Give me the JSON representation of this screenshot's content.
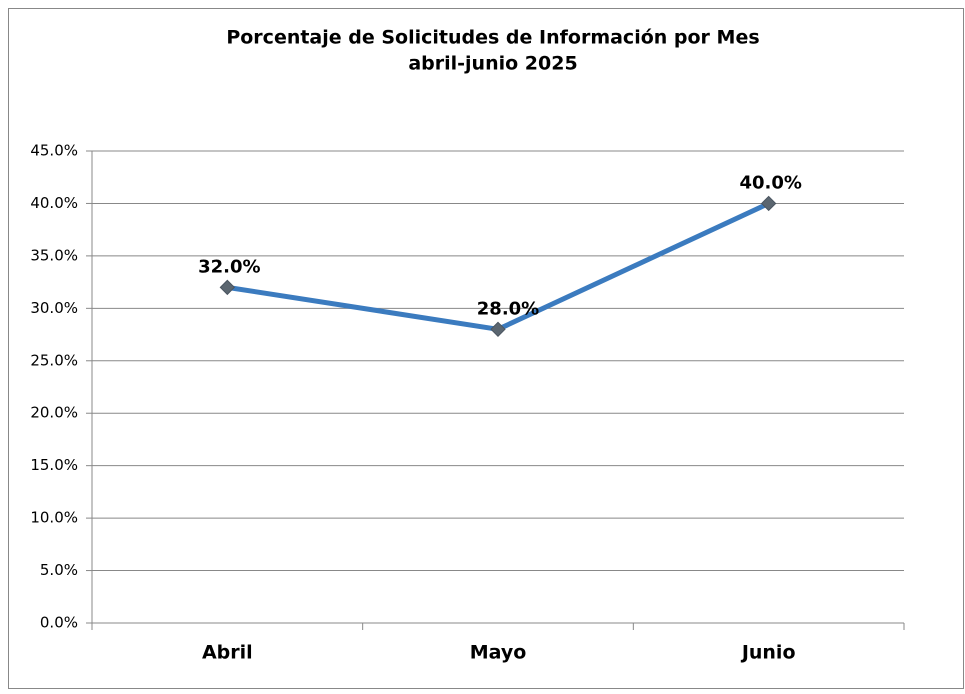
{
  "chart_data": {
    "type": "line",
    "title": "Porcentaje de Solicitudes de Información por Mes",
    "subtitle": "abril-junio 2025",
    "categories": [
      "Abril",
      "Mayo",
      "Junio"
    ],
    "series": [
      {
        "name": "Porcentaje",
        "color": "#3b7bbf",
        "marker_color": "#5b6670",
        "values": [
          32.0,
          28.0,
          40.0
        ],
        "value_labels": [
          "32.0%",
          "28.0%",
          "40.0%"
        ]
      }
    ],
    "ylim": [
      0,
      45
    ],
    "yticks": [
      {
        "value": 0,
        "label": "0.0%"
      },
      {
        "value": 5,
        "label": "5.0%"
      },
      {
        "value": 10,
        "label": "10.0%"
      },
      {
        "value": 15,
        "label": "15.0%"
      },
      {
        "value": 20,
        "label": "20.0%"
      },
      {
        "value": 25,
        "label": "25.0%"
      },
      {
        "value": 30,
        "label": "30.0%"
      },
      {
        "value": 35,
        "label": "35.0%"
      },
      {
        "value": 40,
        "label": "40.0%"
      },
      {
        "value": 45,
        "label": "45.0%"
      }
    ],
    "grid": true
  }
}
